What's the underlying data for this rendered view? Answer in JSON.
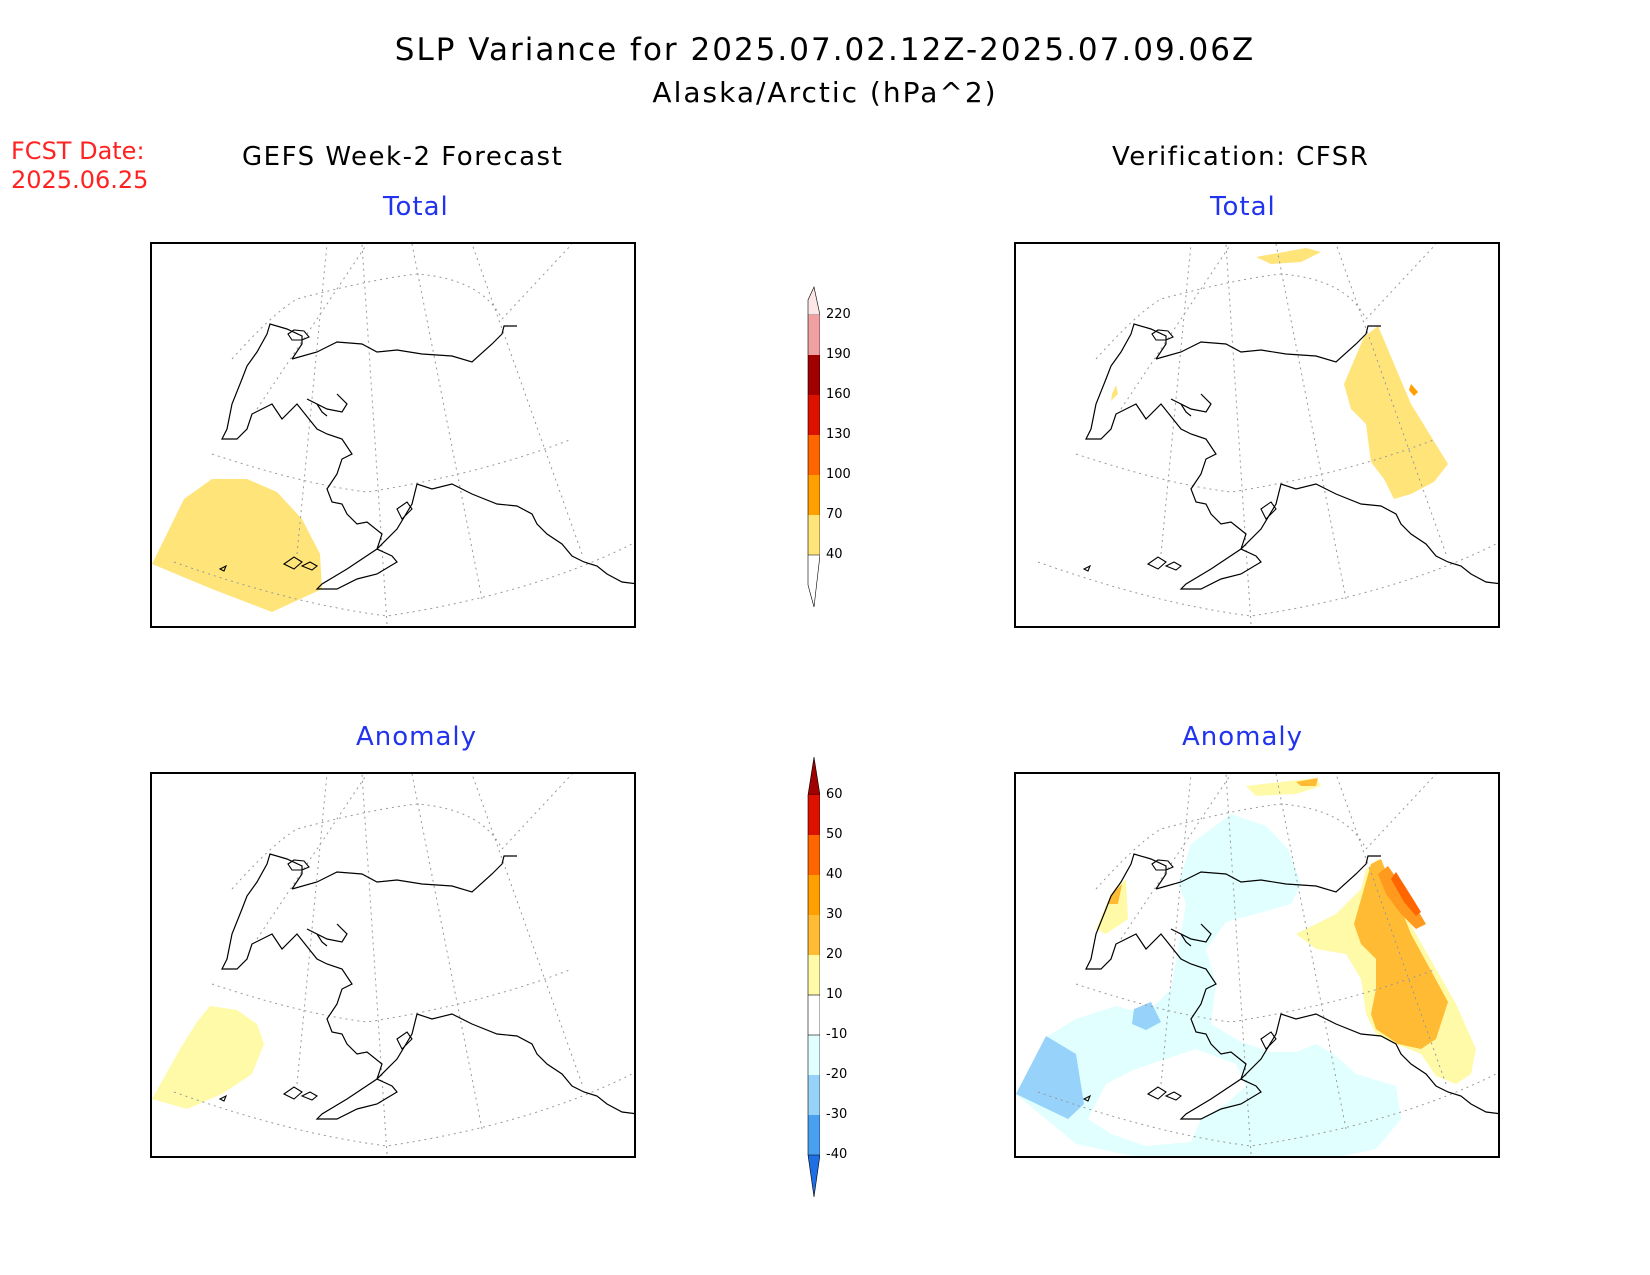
{
  "title": {
    "line1": "SLP Variance for 2025.07.02.12Z-2025.07.09.06Z",
    "line2": "Alaska/Arctic (hPa^2)"
  },
  "fcst_date": {
    "line1": "FCST Date:",
    "line2": "2025.06.25"
  },
  "columns": {
    "left": "GEFS Week-2 Forecast",
    "right": "Verification: CFSR"
  },
  "panels": {
    "total_label": "Total",
    "anomaly_label": "Anomaly"
  },
  "colorbar_total": {
    "labels": [
      "220",
      "190",
      "160",
      "130",
      "100",
      "70",
      "40"
    ],
    "colors": [
      "#fde6e6",
      "#f0a0a0",
      "#a00000",
      "#dd1100",
      "#ff6600",
      "#ffa000",
      "#ffe47a"
    ]
  },
  "colorbar_anomaly": {
    "labels": [
      "60",
      "50",
      "40",
      "30",
      "20",
      "10",
      "-10",
      "-20",
      "-30",
      "-40"
    ],
    "colors_top_down": [
      "#a00000",
      "#dd1100",
      "#ff6600",
      "#ffa000",
      "#ffbb33",
      "#fffaa8",
      "#ffffff",
      "#e0fffe",
      "#96d2fa",
      "#4aa0f0",
      "#1e6ee6"
    ]
  }
}
